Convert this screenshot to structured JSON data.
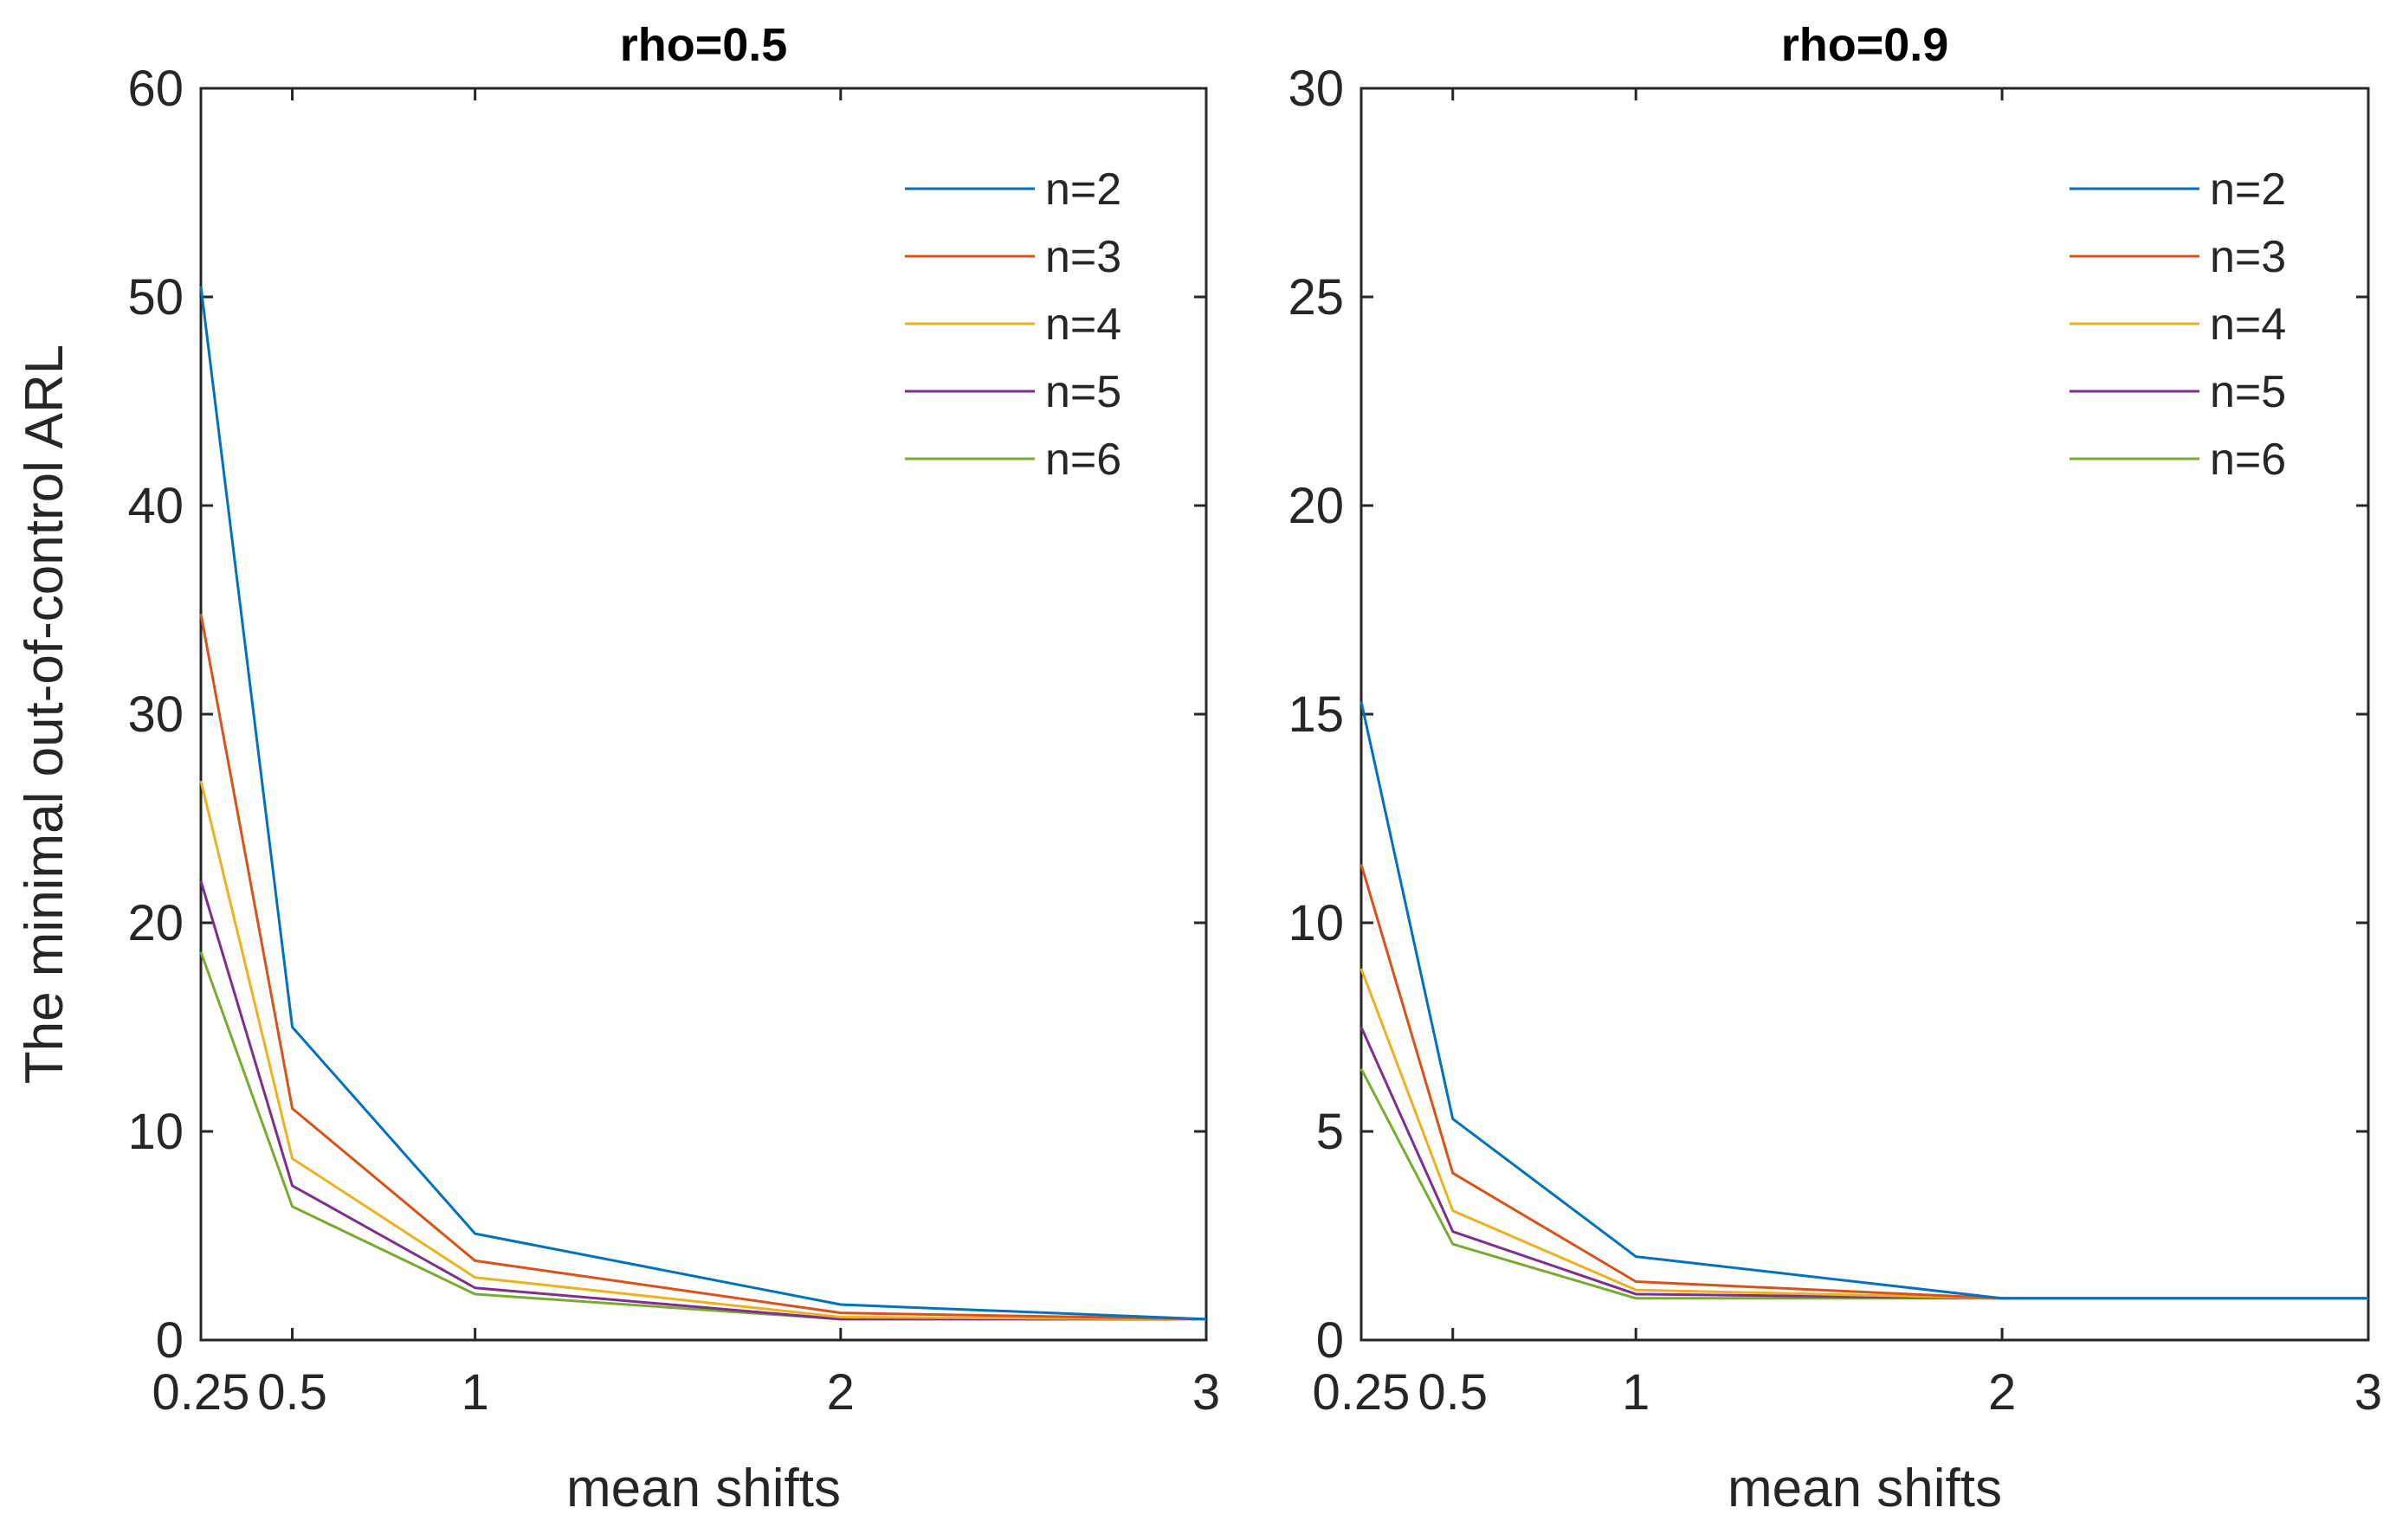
{
  "chart_data": [
    {
      "type": "line",
      "title": "rho=0.5",
      "xlabel": "mean shifts",
      "ylabel": "The minimal out-of-control ARL",
      "x": [
        0.25,
        0.5,
        1,
        2,
        3
      ],
      "xticks": [
        0.25,
        0.5,
        1,
        2,
        3
      ],
      "xtick_labels": [
        "0.25",
        "0.5",
        "1",
        "2",
        "3"
      ],
      "xlim": [
        0.25,
        3
      ],
      "ylim": [
        0,
        60
      ],
      "yticks": [
        0,
        10,
        20,
        30,
        40,
        50,
        60
      ],
      "ytick_labels": [
        "0",
        "10",
        "20",
        "30",
        "40",
        "50",
        "60"
      ],
      "legend_position": "top-right",
      "series": [
        {
          "name": "n=2",
          "color": "#0072BD",
          "values": [
            50.5,
            15.0,
            5.1,
            1.7,
            1.0
          ]
        },
        {
          "name": "n=3",
          "color": "#D95319",
          "values": [
            34.8,
            11.1,
            3.8,
            1.3,
            1.0
          ]
        },
        {
          "name": "n=4",
          "color": "#EDB120",
          "values": [
            26.8,
            8.7,
            3.0,
            1.1,
            1.0
          ]
        },
        {
          "name": "n=5",
          "color": "#7E2F8E",
          "values": [
            22.0,
            7.4,
            2.5,
            1.0,
            1.0
          ]
        },
        {
          "name": "n=6",
          "color": "#77AC30",
          "values": [
            18.6,
            6.4,
            2.2,
            1.0,
            1.0
          ]
        }
      ]
    },
    {
      "type": "line",
      "title": "rho=0.9",
      "xlabel": "mean shifts",
      "ylabel": "",
      "x": [
        0.25,
        0.5,
        1,
        2,
        3
      ],
      "xticks": [
        0.25,
        0.5,
        1,
        2,
        3
      ],
      "xtick_labels": [
        "0.25",
        "0.5",
        "1",
        "2",
        "3"
      ],
      "xlim": [
        0.25,
        3
      ],
      "ylim": [
        0,
        30
      ],
      "yticks": [
        0,
        5,
        10,
        15,
        20,
        25,
        30
      ],
      "ytick_labels": [
        "0",
        "5",
        "10",
        "15",
        "20",
        "25",
        "30"
      ],
      "legend_position": "top-right",
      "series": [
        {
          "name": "n=2",
          "color": "#0072BD",
          "values": [
            15.3,
            5.3,
            2.0,
            1.0,
            1.0
          ]
        },
        {
          "name": "n=3",
          "color": "#D95319",
          "values": [
            11.4,
            4.0,
            1.4,
            1.0,
            1.0
          ]
        },
        {
          "name": "n=4",
          "color": "#EDB120",
          "values": [
            8.9,
            3.1,
            1.2,
            1.0,
            1.0
          ]
        },
        {
          "name": "n=5",
          "color": "#7E2F8E",
          "values": [
            7.5,
            2.6,
            1.1,
            1.0,
            1.0
          ]
        },
        {
          "name": "n=6",
          "color": "#77AC30",
          "values": [
            6.5,
            2.3,
            1.0,
            1.0,
            1.0
          ]
        }
      ]
    }
  ]
}
